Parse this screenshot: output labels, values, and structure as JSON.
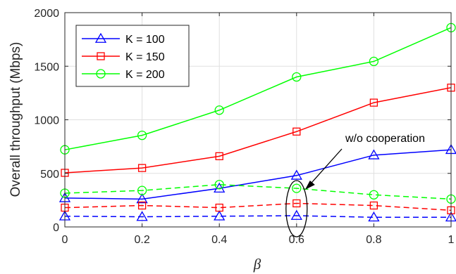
{
  "chart_data": {
    "type": "line",
    "title": "",
    "xlabel": "β",
    "ylabel": "Overall throughput (Mbps)",
    "x": [
      0,
      0.2,
      0.4,
      0.6,
      0.8,
      1
    ],
    "x_tick_labels": [
      "0",
      "0.2",
      "0.4",
      "0.6",
      "0.8",
      "1"
    ],
    "xlim": [
      0,
      1
    ],
    "y_ticks": [
      0,
      500,
      1000,
      1500,
      2000
    ],
    "y_tick_labels": [
      "0",
      "500",
      "1000",
      "1500",
      "2000"
    ],
    "ylim": [
      0,
      2000
    ],
    "grid": true,
    "legend_position": "top-left",
    "series": [
      {
        "name": "K = 100",
        "color": "#0000ff",
        "marker": "triangle",
        "dash": "solid",
        "values": [
          270,
          260,
          360,
          480,
          670,
          720
        ]
      },
      {
        "name": "K = 150",
        "color": "#ff0000",
        "marker": "square",
        "dash": "solid",
        "values": [
          505,
          550,
          660,
          890,
          1160,
          1300
        ]
      },
      {
        "name": "K = 200",
        "color": "#00ff00",
        "marker": "circle",
        "dash": "solid",
        "values": [
          720,
          855,
          1090,
          1400,
          1545,
          1860
        ]
      },
      {
        "color": "#0000ff",
        "marker": "triangle",
        "dash": "dashed",
        "values": [
          100,
          95,
          100,
          105,
          90,
          90
        ]
      },
      {
        "color": "#ff0000",
        "marker": "square",
        "dash": "dashed",
        "values": [
          180,
          200,
          180,
          220,
          200,
          155
        ]
      },
      {
        "color": "#00ff00",
        "marker": "circle",
        "dash": "dashed",
        "values": [
          315,
          340,
          395,
          360,
          300,
          260
        ]
      }
    ],
    "annotation": {
      "text": "w/o cooperation",
      "x": 0.6
    }
  }
}
